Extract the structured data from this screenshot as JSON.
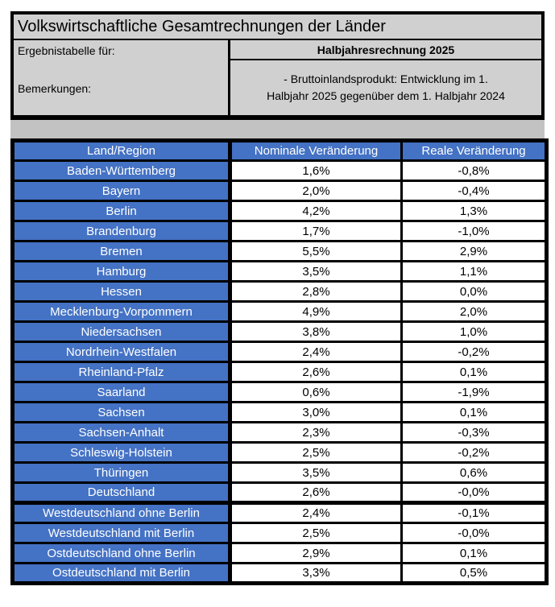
{
  "header": {
    "title": "Volkswirtschaftliche Gesamtrechnungen der Länder",
    "result_table_label": "Ergebnistabelle für:",
    "period_value": "Halbjahresrechnung 2025",
    "remarks_label": "Bemerkungen:",
    "remark_lines": [
      "- Bruttoinlandsprodukt: Entwicklung im 1.",
      "Halbjahr 2025 gegenüber dem 1. Halbjahr 2024"
    ]
  },
  "colors": {
    "accent_blue": "#4472c4",
    "header_block_gray": "#d0d0d0",
    "band_gray": "#c2c2c2",
    "border_black": "#000000"
  },
  "table": {
    "columns": [
      "Land/Region",
      "Nominale Veränderung",
      "Reale Veränderung"
    ],
    "rows": [
      {
        "name": "Baden-Württemberg",
        "nominal": "1,6%",
        "real": "-0,8%"
      },
      {
        "name": "Bayern",
        "nominal": "2,0%",
        "real": "-0,4%"
      },
      {
        "name": "Berlin",
        "nominal": "4,2%",
        "real": "1,3%"
      },
      {
        "name": "Brandenburg",
        "nominal": "1,7%",
        "real": "-1,0%"
      },
      {
        "name": "Bremen",
        "nominal": "5,5%",
        "real": "2,9%"
      },
      {
        "name": "Hamburg",
        "nominal": "3,5%",
        "real": "1,1%"
      },
      {
        "name": "Hessen",
        "nominal": "2,8%",
        "real": "0,0%"
      },
      {
        "name": "Mecklenburg-Vorpommern",
        "nominal": "4,9%",
        "real": "2,0%"
      },
      {
        "name": "Niedersachsen",
        "nominal": "3,8%",
        "real": "1,0%"
      },
      {
        "name": "Nordrhein-Westfalen",
        "nominal": "2,4%",
        "real": "-0,2%"
      },
      {
        "name": "Rheinland-Pfalz",
        "nominal": "2,6%",
        "real": "0,1%"
      },
      {
        "name": "Saarland",
        "nominal": "0,6%",
        "real": "-1,9%"
      },
      {
        "name": "Sachsen",
        "nominal": "3,0%",
        "real": "0,1%"
      },
      {
        "name": "Sachsen-Anhalt",
        "nominal": "2,3%",
        "real": "-0,3%"
      },
      {
        "name": "Schleswig-Holstein",
        "nominal": "2,5%",
        "real": "-0,2%"
      },
      {
        "name": "Thüringen",
        "nominal": "3,5%",
        "real": "0,6%"
      },
      {
        "name": "Deutschland",
        "nominal": "2,6%",
        "real": "-0,0%"
      },
      {
        "name": "Westdeutschland ohne Berlin",
        "nominal": "2,4%",
        "real": "-0,1%",
        "thick_top": true
      },
      {
        "name": "Westdeutschland mit Berlin",
        "nominal": "2,5%",
        "real": "-0,0%"
      },
      {
        "name": "Ostdeutschland ohne Berlin",
        "nominal": "2,9%",
        "real": "0,1%"
      },
      {
        "name": "Ostdeutschland mit Berlin",
        "nominal": "3,3%",
        "real": "0,5%"
      }
    ]
  }
}
